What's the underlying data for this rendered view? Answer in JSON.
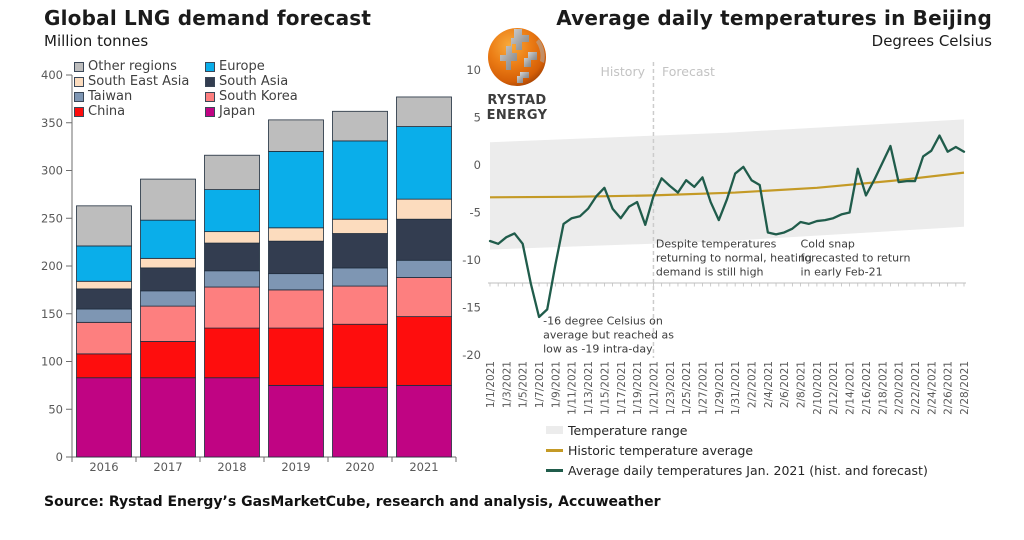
{
  "branding": {
    "logo_text": "RYSTAD ENERGY"
  },
  "source_note": "Source: Rystad Energy’s GasMarketCube, research and analysis, Accuweather",
  "chart_data": [
    {
      "type": "bar",
      "stacked": true,
      "title": "Global LNG demand forecast",
      "subtitle": "Million tonnes",
      "ylabel": "Million tonnes",
      "ylim": [
        0,
        400
      ],
      "ytick_step": 50,
      "grid": false,
      "legend_position": "top-left",
      "categories": [
        "2016",
        "2017",
        "2018",
        "2019",
        "2020",
        "2021"
      ],
      "series": [
        {
          "name": "Japan",
          "color": "#c00483",
          "values": [
            83,
            83,
            83,
            75,
            73,
            75
          ]
        },
        {
          "name": "China",
          "color": "#fe0d0d",
          "values": [
            25,
            38,
            52,
            60,
            66,
            72
          ]
        },
        {
          "name": "South Korea",
          "color": "#fd7f7f",
          "values": [
            33,
            37,
            43,
            40,
            40,
            41
          ]
        },
        {
          "name": "Taiwan",
          "color": "#7e96b3",
          "values": [
            14,
            16,
            17,
            17,
            19,
            18
          ]
        },
        {
          "name": "South Asia",
          "color": "#333d50",
          "values": [
            21,
            24,
            29,
            34,
            36,
            43
          ]
        },
        {
          "name": "South East Asia",
          "color": "#fcdcbe",
          "values": [
            8,
            10,
            12,
            14,
            15,
            21
          ]
        },
        {
          "name": "Europe",
          "color": "#0aaeea",
          "values": [
            37,
            40,
            44,
            80,
            82,
            76
          ]
        },
        {
          "name": "Other regions",
          "color": "#bdbdbd",
          "values": [
            42,
            43,
            36,
            33,
            31,
            31
          ]
        }
      ],
      "legend_order": [
        "Other regions",
        "Europe",
        "South East Asia",
        "South Asia",
        "Taiwan",
        "South Korea",
        "China",
        "Japan"
      ]
    },
    {
      "type": "line",
      "title": "Average daily temperatures in Beijing",
      "subtitle": "Degrees Celsius",
      "ylabel": "Degrees Celsius",
      "ylim": [
        -20,
        10
      ],
      "ytick_step": 5,
      "grid": false,
      "history_label": "History",
      "forecast_label": "Forecast",
      "forecast_boundary_index": 20,
      "x_tick_labels": [
        "1/1/2021",
        "1/3/2021",
        "1/5/2021",
        "1/7/2021",
        "1/9/2021",
        "1/11/2021",
        "1/13/2021",
        "1/15/2021",
        "1/17/2021",
        "1/19/2021",
        "1/21/2021",
        "1/23/2021",
        "1/25/2021",
        "1/27/2021",
        "1/29/2021",
        "1/31/2021",
        "2/2/2021",
        "2/4/2021",
        "2/6/2021",
        "2/8/2021",
        "2/10/2021",
        "2/12/2021",
        "2/14/2021",
        "2/16/2021",
        "2/18/2021",
        "2/20/2021",
        "2/22/2021",
        "2/24/2021",
        "2/26/2021",
        "2/28/2021"
      ],
      "band": {
        "name": "Temperature range",
        "color": "#ececec",
        "upper": [
          [
            0,
            2.4
          ],
          [
            29,
            3.4
          ],
          [
            58,
            4.8
          ]
        ],
        "lower": [
          [
            0,
            -8.9
          ],
          [
            29,
            -8.0
          ],
          [
            58,
            -6.5
          ]
        ]
      },
      "average_line": {
        "name": "Historic temperature average",
        "color": "#c49a26",
        "points": [
          [
            0,
            -3.4
          ],
          [
            10,
            -3.35
          ],
          [
            20,
            -3.2
          ],
          [
            30,
            -2.9
          ],
          [
            40,
            -2.4
          ],
          [
            50,
            -1.6
          ],
          [
            58,
            -0.8
          ]
        ]
      },
      "daily_line": {
        "name": "Average daily temperatures Jan. 2021 (hist. and forecast)",
        "color": "#205c4b",
        "values": [
          -8.0,
          -8.3,
          -7.6,
          -7.2,
          -8.3,
          -12.5,
          -16.0,
          -15.2,
          -10.5,
          -6.2,
          -5.6,
          -5.4,
          -4.6,
          -3.3,
          -2.4,
          -4.6,
          -5.6,
          -4.4,
          -3.9,
          -6.3,
          -3.3,
          -1.4,
          -2.2,
          -2.9,
          -1.6,
          -2.3,
          -1.3,
          -3.9,
          -5.8,
          -3.6,
          -0.9,
          -0.2,
          -1.6,
          -2.1,
          -7.1,
          -7.3,
          -7.1,
          -6.7,
          -6.0,
          -6.2,
          -5.9,
          -5.8,
          -5.6,
          -5.2,
          -5.0,
          -0.4,
          -3.2,
          -1.6,
          0.2,
          2.0,
          -1.8,
          -1.7,
          -1.7,
          0.9,
          1.5,
          3.1,
          1.4,
          1.9,
          1.4
        ]
      },
      "annotations": [
        {
          "lines": [
            "-16 degree Celsius on",
            "average but reached as",
            "low as -19 intra-day"
          ],
          "x_day": 6.5,
          "y_value": -16.8
        },
        {
          "lines": [
            "Despite temperatures",
            "returning to normal, heating",
            "demand is still high"
          ],
          "x_day": 20.3,
          "y_value": -8.7
        },
        {
          "lines": [
            "Cold snap",
            "forecasted to return",
            "in early Feb-21"
          ],
          "x_day": 38,
          "y_value": -8.7
        }
      ]
    }
  ]
}
